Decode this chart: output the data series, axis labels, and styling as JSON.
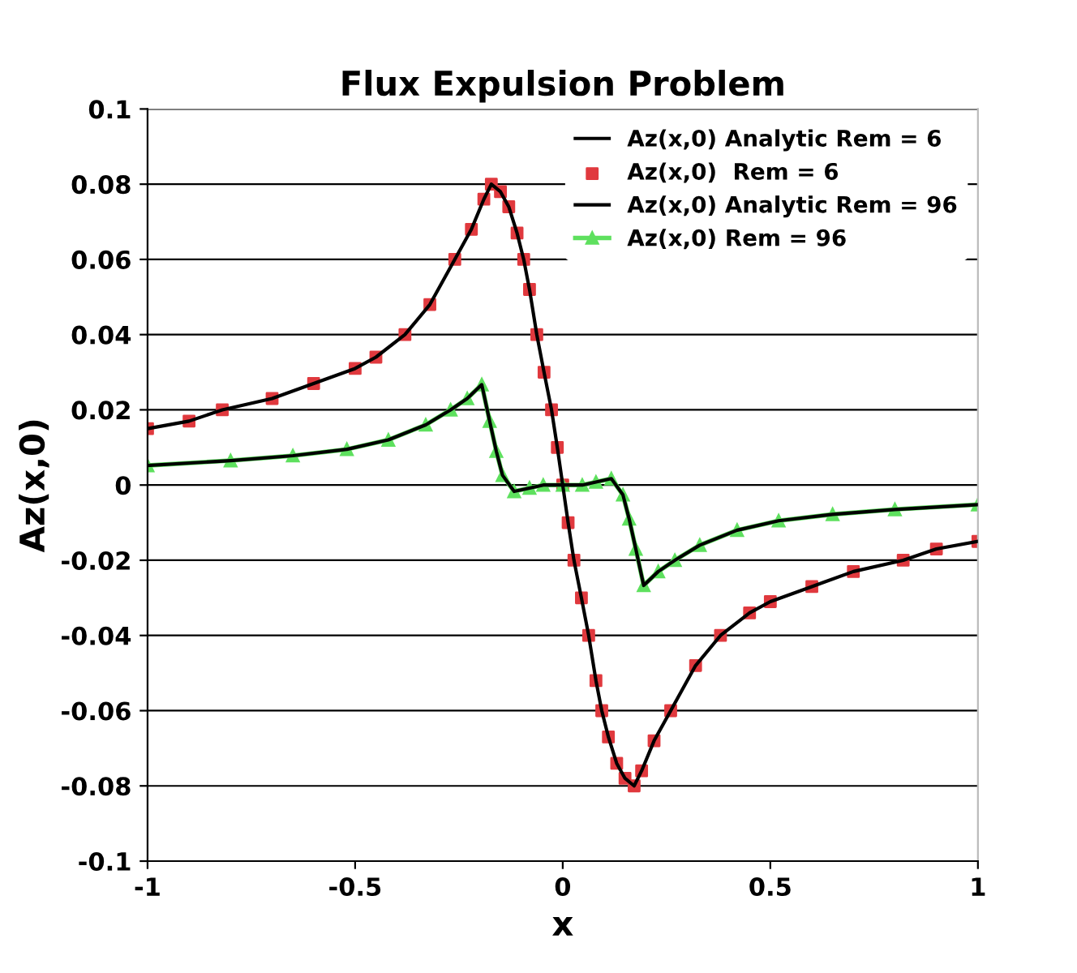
{
  "chart_data": {
    "type": "line",
    "title": "Flux Expulsion Problem",
    "xlabel": "x",
    "ylabel": "Az(x,0)",
    "xlim": [
      -1,
      1
    ],
    "xticks": [
      -1,
      -0.5,
      0,
      0.5,
      1
    ],
    "ylim": [
      -0.1,
      0.1
    ],
    "yticks": [
      -0.1,
      -0.08,
      -0.06,
      -0.04,
      -0.02,
      0,
      0.02,
      0.04,
      0.06,
      0.08,
      0.1
    ],
    "grid": "y",
    "legend": "top right",
    "series": [
      {
        "name": "Az(x,0) Analytic Rem = 6",
        "color": "#000000",
        "marker": "none",
        "x": [
          -1,
          -0.9,
          -0.82,
          -0.7,
          -0.6,
          -0.5,
          -0.45,
          -0.38,
          -0.32,
          -0.26,
          -0.22,
          -0.19,
          -0.172,
          -0.15,
          -0.13,
          -0.11,
          -0.094,
          -0.08,
          -0.0625,
          -0.045,
          -0.027,
          -0.013,
          0,
          0.013,
          0.027,
          0.045,
          0.0625,
          0.08,
          0.094,
          0.11,
          0.13,
          0.15,
          0.172,
          0.19,
          0.22,
          0.26,
          0.32,
          0.38,
          0.45,
          0.5,
          0.6,
          0.7,
          0.82,
          0.9,
          1
        ],
        "values": [
          0.015,
          0.017,
          0.02,
          0.023,
          0.027,
          0.031,
          0.034,
          0.04,
          0.048,
          0.06,
          0.068,
          0.076,
          0.08,
          0.078,
          0.074,
          0.067,
          0.06,
          0.052,
          0.04,
          0.03,
          0.02,
          0.01,
          0,
          -0.01,
          -0.02,
          -0.03,
          -0.04,
          -0.052,
          -0.06,
          -0.067,
          -0.074,
          -0.078,
          -0.08,
          -0.076,
          -0.068,
          -0.06,
          -0.048,
          -0.04,
          -0.034,
          -0.031,
          -0.027,
          -0.023,
          -0.02,
          -0.017,
          -0.015
        ]
      },
      {
        "name": "Az(x,0)  Rem = 6",
        "type": "scatter",
        "color": "#e0393e",
        "marker": "square",
        "x": [
          -1,
          -0.9,
          -0.82,
          -0.7,
          -0.6,
          -0.5,
          -0.45,
          -0.38,
          -0.32,
          -0.26,
          -0.22,
          -0.19,
          -0.172,
          -0.15,
          -0.13,
          -0.11,
          -0.094,
          -0.08,
          -0.0625,
          -0.045,
          -0.027,
          -0.013,
          0,
          0.013,
          0.027,
          0.045,
          0.0625,
          0.08,
          0.094,
          0.11,
          0.13,
          0.15,
          0.172,
          0.19,
          0.22,
          0.26,
          0.32,
          0.38,
          0.45,
          0.5,
          0.6,
          0.7,
          0.82,
          0.9,
          1
        ],
        "values": [
          0.015,
          0.017,
          0.02,
          0.023,
          0.027,
          0.031,
          0.034,
          0.04,
          0.048,
          0.06,
          0.068,
          0.076,
          0.08,
          0.078,
          0.074,
          0.067,
          0.06,
          0.052,
          0.04,
          0.03,
          0.02,
          0.01,
          0,
          -0.01,
          -0.02,
          -0.03,
          -0.04,
          -0.052,
          -0.06,
          -0.067,
          -0.074,
          -0.078,
          -0.08,
          -0.076,
          -0.068,
          -0.06,
          -0.048,
          -0.04,
          -0.034,
          -0.031,
          -0.027,
          -0.023,
          -0.02,
          -0.017,
          -0.015
        ]
      },
      {
        "name": "Az(x,0) Analytic Rem = 96",
        "color": "#000000",
        "marker": "none",
        "x": [
          -1,
          -0.8,
          -0.65,
          -0.52,
          -0.42,
          -0.33,
          -0.27,
          -0.23,
          -0.195,
          -0.176,
          -0.16,
          -0.145,
          -0.117,
          -0.08,
          -0.047,
          0,
          0.047,
          0.08,
          0.117,
          0.145,
          0.16,
          0.176,
          0.195,
          0.23,
          0.27,
          0.33,
          0.42,
          0.52,
          0.65,
          0.8,
          1
        ],
        "values": [
          0.0052,
          0.0065,
          0.0078,
          0.0095,
          0.012,
          0.016,
          0.02,
          0.023,
          0.0267,
          0.017,
          0.009,
          0.0026,
          -0.0017,
          -0.0008,
          0,
          0,
          0,
          0.0008,
          0.0017,
          -0.0026,
          -0.009,
          -0.017,
          -0.0267,
          -0.023,
          -0.02,
          -0.016,
          -0.012,
          -0.0095,
          -0.0078,
          -0.0065,
          -0.0052
        ]
      },
      {
        "name": "Az(x,0) Rem = 96",
        "color": "#5ee05e",
        "marker": "triangle",
        "x": [
          -1,
          -0.8,
          -0.65,
          -0.52,
          -0.42,
          -0.33,
          -0.27,
          -0.23,
          -0.195,
          -0.176,
          -0.16,
          -0.145,
          -0.117,
          -0.08,
          -0.047,
          0,
          0.047,
          0.08,
          0.117,
          0.145,
          0.16,
          0.176,
          0.195,
          0.23,
          0.27,
          0.33,
          0.42,
          0.52,
          0.65,
          0.8,
          1
        ],
        "values": [
          0.0052,
          0.0065,
          0.0078,
          0.0095,
          0.012,
          0.016,
          0.02,
          0.023,
          0.0267,
          0.017,
          0.009,
          0.0026,
          -0.0017,
          -0.0008,
          0,
          0,
          0,
          0.0008,
          0.0017,
          -0.0026,
          -0.009,
          -0.017,
          -0.0267,
          -0.023,
          -0.02,
          -0.016,
          -0.012,
          -0.0095,
          -0.0078,
          -0.0065,
          -0.0052
        ]
      }
    ]
  }
}
